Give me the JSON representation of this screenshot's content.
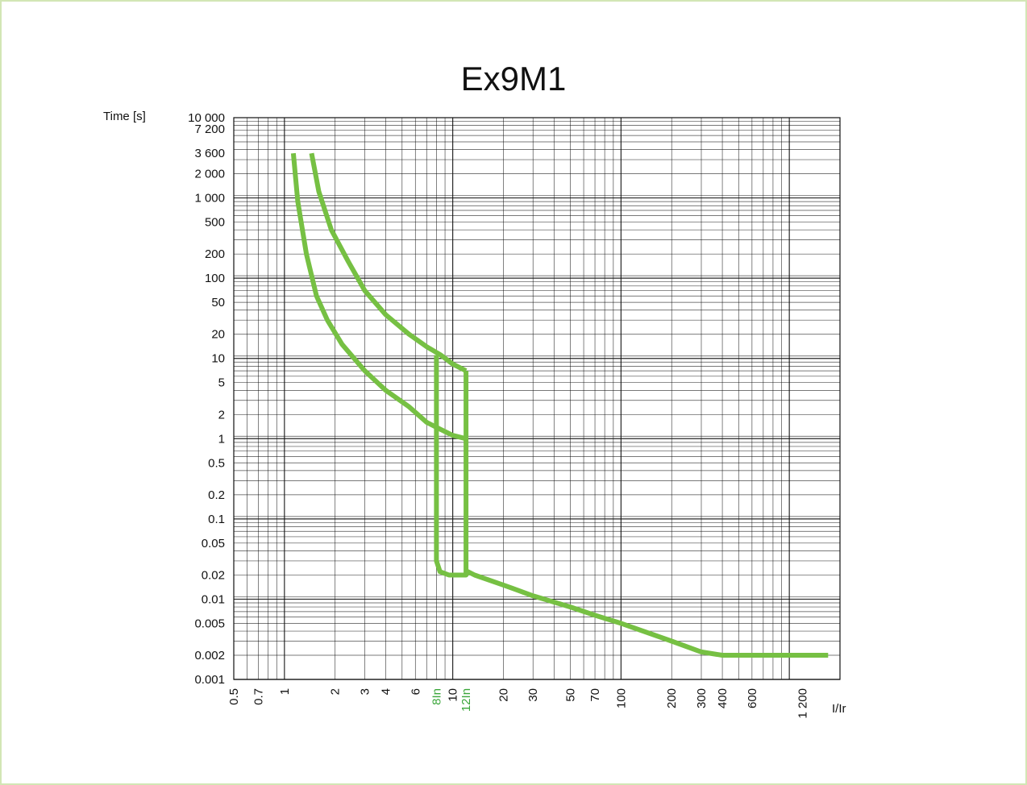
{
  "chart_data": {
    "type": "line",
    "title": "Ex9M1",
    "ylabel": "Time [s]",
    "xlabel": "I/Ir",
    "x_scale": "log",
    "y_scale": "log",
    "xlim": [
      0.5,
      2000
    ],
    "ylim": [
      0.001,
      10000
    ],
    "grid": true,
    "curve_color": "#76c043",
    "axis_color": "#111111",
    "highlight_tick_color": "#3aa63a",
    "x_ticks": [
      {
        "value": 0.5,
        "label": "0.5"
      },
      {
        "value": 0.7,
        "label": "0.7"
      },
      {
        "value": 1,
        "label": "1"
      },
      {
        "value": 2,
        "label": "2"
      },
      {
        "value": 3,
        "label": "3"
      },
      {
        "value": 4,
        "label": "4"
      },
      {
        "value": 6,
        "label": "6"
      },
      {
        "value": 8,
        "label": "8In",
        "highlight": true
      },
      {
        "value": 10,
        "label": "10"
      },
      {
        "value": 12,
        "label": "12In",
        "highlight": true
      },
      {
        "value": 20,
        "label": "20"
      },
      {
        "value": 30,
        "label": "30"
      },
      {
        "value": 50,
        "label": "50"
      },
      {
        "value": 70,
        "label": "70"
      },
      {
        "value": 100,
        "label": "100"
      },
      {
        "value": 200,
        "label": "200"
      },
      {
        "value": 300,
        "label": "300"
      },
      {
        "value": 400,
        "label": "400"
      },
      {
        "value": 600,
        "label": "600"
      },
      {
        "value": 1200,
        "label": "1 200"
      }
    ],
    "y_ticks": [
      {
        "value": 10000,
        "label": "10 000"
      },
      {
        "value": 7200,
        "label": "7 200"
      },
      {
        "value": 3600,
        "label": "3 600"
      },
      {
        "value": 2000,
        "label": "2 000"
      },
      {
        "value": 1000,
        "label": "1 000"
      },
      {
        "value": 500,
        "label": "500"
      },
      {
        "value": 200,
        "label": "200"
      },
      {
        "value": 100,
        "label": "100"
      },
      {
        "value": 50,
        "label": "50"
      },
      {
        "value": 20,
        "label": "20"
      },
      {
        "value": 10,
        "label": "10"
      },
      {
        "value": 5,
        "label": "5"
      },
      {
        "value": 2,
        "label": "2"
      },
      {
        "value": 1,
        "label": "1"
      },
      {
        "value": 0.5,
        "label": "0.5"
      },
      {
        "value": 0.2,
        "label": "0.2"
      },
      {
        "value": 0.1,
        "label": "0.1"
      },
      {
        "value": 0.05,
        "label": "0.05"
      },
      {
        "value": 0.02,
        "label": "0.02"
      },
      {
        "value": 0.01,
        "label": "0.01"
      },
      {
        "value": 0.005,
        "label": "0.005"
      },
      {
        "value": 0.002,
        "label": "0.002"
      },
      {
        "value": 0.001,
        "label": "0.001"
      }
    ],
    "series": [
      {
        "points": [
          [
            1.13,
            3600
          ],
          [
            1.2,
            900
          ],
          [
            1.35,
            200
          ],
          [
            1.55,
            60
          ],
          [
            1.8,
            30
          ],
          [
            2.2,
            15
          ],
          [
            3,
            7
          ],
          [
            4,
            4
          ],
          [
            5.5,
            2.5
          ],
          [
            7,
            1.6
          ],
          [
            8.5,
            1.3
          ],
          [
            10,
            1.1
          ],
          [
            12,
            1.0
          ]
        ]
      },
      {
        "points": [
          [
            1.45,
            3600
          ],
          [
            1.6,
            1200
          ],
          [
            1.9,
            400
          ],
          [
            2.4,
            160
          ],
          [
            3,
            70
          ],
          [
            4,
            35
          ],
          [
            5.5,
            20
          ],
          [
            7,
            14
          ],
          [
            8.5,
            11
          ],
          [
            10,
            8.5
          ],
          [
            12,
            7
          ]
        ]
      },
      {
        "points": [
          [
            8,
            11
          ],
          [
            8,
            0.03
          ],
          [
            8.4,
            0.022
          ],
          [
            9.5,
            0.02
          ],
          [
            12,
            0.02
          ],
          [
            12,
            7
          ]
        ]
      },
      {
        "points": [
          [
            12,
            0.02
          ],
          [
            12.3,
            0.022
          ],
          [
            13.5,
            0.02
          ],
          [
            20,
            0.015
          ],
          [
            30,
            0.011
          ],
          [
            50,
            0.008
          ],
          [
            70,
            0.0063
          ],
          [
            100,
            0.005
          ],
          [
            200,
            0.003
          ],
          [
            300,
            0.0022
          ],
          [
            400,
            0.002
          ],
          [
            1700,
            0.002
          ]
        ]
      }
    ]
  }
}
